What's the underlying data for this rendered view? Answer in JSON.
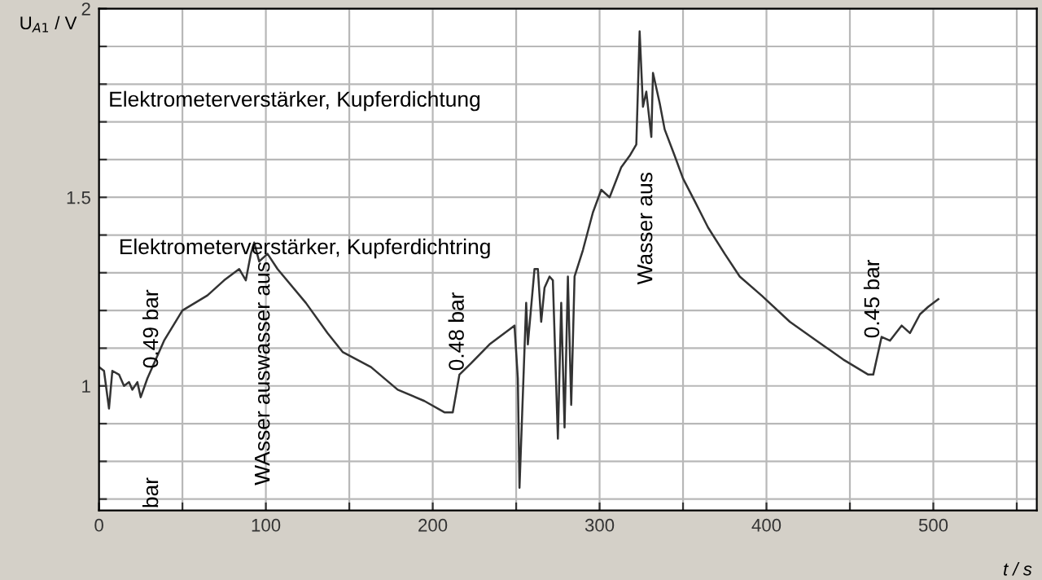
{
  "chart_data": {
    "type": "line",
    "xlabel": "t / s",
    "ylabel": "U$_{A1}$ / V",
    "xlim": [
      0,
      562
    ],
    "ylim": [
      0.67,
      2
    ],
    "xticks": [
      0,
      {
        "value": 50,
        "label": null
      },
      100,
      {
        "value": 150,
        "label": null
      },
      200,
      {
        "value": 250,
        "label": null
      },
      300,
      {
        "value": 350,
        "label": null
      },
      400,
      {
        "value": 450,
        "label": null
      },
      500,
      {
        "value": 550,
        "label": null
      }
    ],
    "yticks": [
      {
        "value": 0.7,
        "label": null
      },
      {
        "value": 0.8,
        "label": null
      },
      {
        "value": 0.9,
        "label": null
      },
      1,
      {
        "value": 1.1,
        "label": null
      },
      {
        "value": 1.2,
        "label": null
      },
      {
        "value": 1.3,
        "label": null
      },
      {
        "value": 1.4,
        "label": null
      },
      1.5,
      {
        "value": 1.6,
        "label": null
      },
      {
        "value": 1.7,
        "label": null
      },
      {
        "value": 1.8,
        "label": null
      },
      {
        "value": 1.9,
        "label": null
      },
      2
    ],
    "grid": true,
    "marker": "none",
    "line_style": "solid",
    "series": [
      {
        "color": "#333333",
        "x": [
          0,
          3,
          6,
          8,
          12,
          15,
          18,
          20,
          23,
          25,
          29,
          33,
          39,
          50,
          65,
          75,
          84,
          88,
          91,
          93,
          96,
          101,
          107,
          124,
          137,
          146,
          163,
          179,
          195,
          207,
          212,
          216,
          223,
          234,
          249,
          251,
          252,
          256,
          257,
          261,
          263,
          265,
          267,
          270,
          272,
          275,
          277,
          279,
          281,
          283,
          285,
          290,
          296,
          301,
          306,
          313,
          318,
          322,
          324,
          326,
          328,
          331,
          332,
          336,
          339,
          345,
          350,
          357,
          365,
          375,
          384,
          397,
          414,
          430,
          446,
          461,
          464,
          469,
          474,
          481,
          486,
          492,
          497,
          503
        ],
        "values": [
          1.05,
          1.04,
          0.94,
          1.04,
          1.03,
          1.0,
          1.01,
          0.99,
          1.01,
          0.97,
          1.02,
          1.06,
          1.12,
          1.2,
          1.24,
          1.28,
          1.31,
          1.28,
          1.35,
          1.38,
          1.33,
          1.35,
          1.31,
          1.22,
          1.14,
          1.09,
          1.05,
          0.99,
          0.96,
          0.93,
          0.93,
          1.03,
          1.06,
          1.11,
          1.16,
          1.02,
          0.73,
          1.22,
          1.11,
          1.31,
          1.31,
          1.17,
          1.26,
          1.29,
          1.28,
          0.86,
          1.22,
          0.89,
          1.29,
          0.95,
          1.29,
          1.36,
          1.46,
          1.52,
          1.5,
          1.58,
          1.61,
          1.64,
          1.94,
          1.74,
          1.78,
          1.66,
          1.83,
          1.75,
          1.68,
          1.61,
          1.55,
          1.49,
          1.42,
          1.35,
          1.29,
          1.24,
          1.17,
          1.12,
          1.07,
          1.03,
          1.03,
          1.13,
          1.12,
          1.16,
          1.14,
          1.19,
          1.21,
          1.23
        ]
      }
    ],
    "annotations": [
      "Elektrometerverstärker, Kupferdichtung",
      "Elektrometerverstärker, Kupferdichtring",
      "0.49 bar",
      "bar",
      "WAsser auswasser aus",
      "0.48 bar",
      "Wasser aus",
      "0.45 bar"
    ]
  }
}
